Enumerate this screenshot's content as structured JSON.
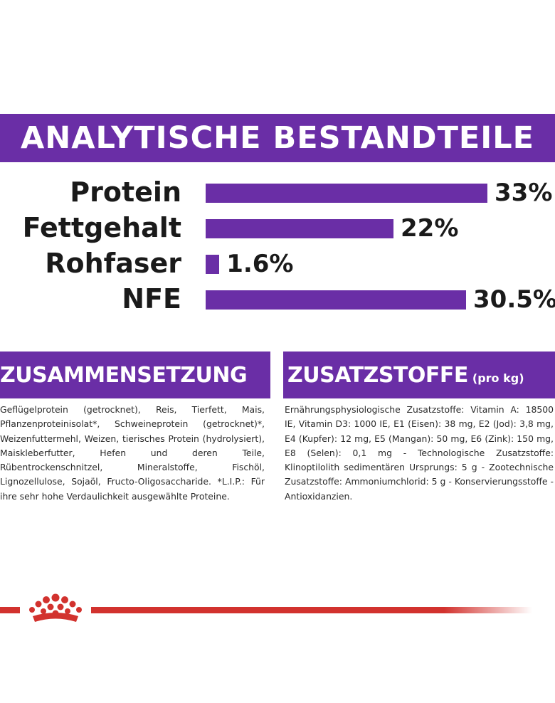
{
  "header": {
    "title": "ANALYTISCHE BESTANDTEILE"
  },
  "colors": {
    "accent": "#6a2ea6",
    "brand_red": "#d2322e"
  },
  "chart_data": {
    "type": "bar",
    "orientation": "horizontal",
    "categories": [
      "Protein",
      "Fettgehalt",
      "Rohfaser",
      "NFE"
    ],
    "values": [
      33,
      22,
      1.6,
      30.5
    ],
    "value_labels": [
      "33%",
      "22%",
      "1.6%",
      "30.5%"
    ],
    "unit": "%"
  },
  "composition": {
    "title": "ZUSAMMENSETZUNG",
    "text": "Geflügelprotein (getrocknet), Reis, Tierfett, Mais, Pflanzenproteinisolat*, Schweineprotein (getrocknet)*, Weizenfuttermehl, Weizen, tierisches Protein (hydrolysiert), Maiskleberfutter, Hefen und deren Teile, Rübentrockenschnitzel, Mineralstoffe, Fischöl, Lignozellulose, Sojaöl, Fructo-Oligosaccharide. *L.I.P.: Für ihre sehr hohe Verdaulichkeit ausgewählte Proteine."
  },
  "additives": {
    "title": "ZUSATZSTOFFE",
    "subtitle": "(pro kg)",
    "text": "Ernährungsphysiologische Zusatzstoffe: Vitamin A: 18500 IE, Vitamin D3: 1000 IE, E1 (Eisen): 38 mg, E2 (Jod): 3,8 mg, E4 (Kupfer): 12 mg, E5 (Mangan): 50 mg, E6 (Zink): 150 mg, E8 (Selen): 0,1 mg - Technologische Zusatzstoffe: Klinoptilolith sedimentären Ursprungs: 5 g - Zootechnische Zusatzstoffe: Ammoniumchlorid: 5 g - Konservierungsstoffe - Antioxidanzien."
  },
  "footer": {
    "logo_icon": "royal-canin-crown-icon"
  }
}
